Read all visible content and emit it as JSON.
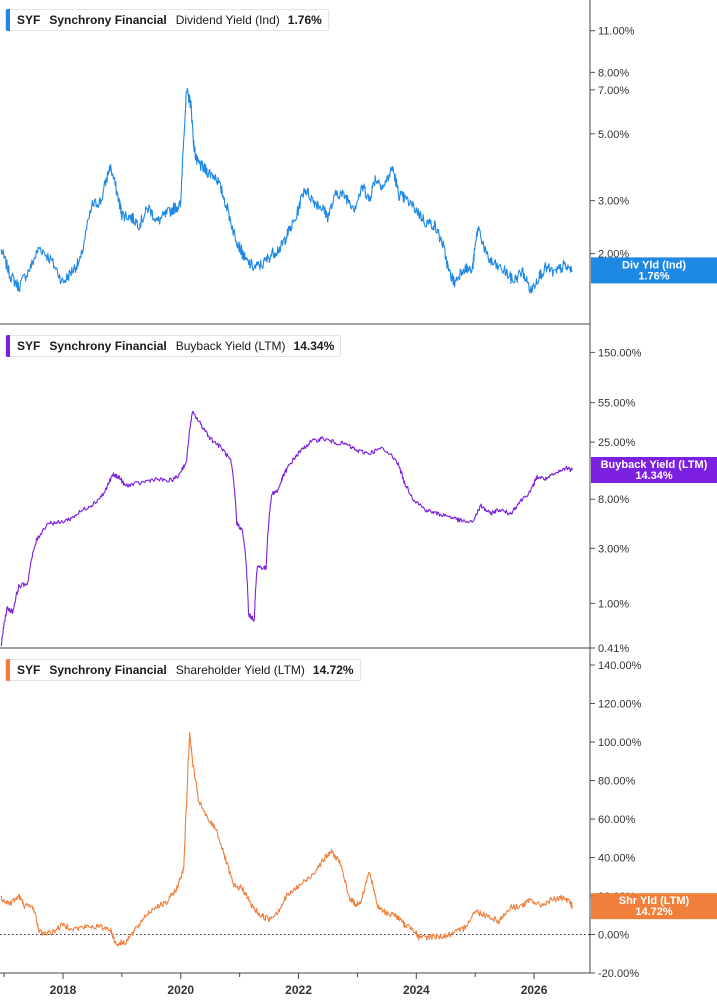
{
  "chart_data": [
    {
      "type": "line",
      "ticker": "SYF",
      "company": "Synchrony Financial",
      "metric": "Dividend Yield (Ind)",
      "current_value": "1.76%",
      "tag_label": "Div Yld (Ind)",
      "tag_value": "1.76%",
      "color": "#1e88e5",
      "scale": "log",
      "ylim": [
        1.3,
        12.5
      ],
      "yticks": [
        {
          "label": "11.00%",
          "value": 11
        },
        {
          "label": "8.00%",
          "value": 8
        },
        {
          "label": "7.00%",
          "value": 7
        },
        {
          "label": "5.00%",
          "value": 5
        },
        {
          "label": "3.00%",
          "value": 3
        },
        {
          "label": "2.00%",
          "value": 2
        }
      ],
      "x": [
        2016.95,
        2017.1,
        2017.25,
        2017.45,
        2017.6,
        2017.8,
        2018.0,
        2018.15,
        2018.3,
        2018.5,
        2018.65,
        2018.8,
        2018.95,
        2019.0,
        2019.15,
        2019.3,
        2019.45,
        2019.6,
        2019.75,
        2019.9,
        2020.0,
        2020.1,
        2020.17,
        2020.22,
        2020.27,
        2020.35,
        2020.45,
        2020.6,
        2020.75,
        2020.9,
        2021.0,
        2021.1,
        2021.25,
        2021.4,
        2021.55,
        2021.7,
        2021.8,
        2021.95,
        2022.1,
        2022.25,
        2022.4,
        2022.5,
        2022.65,
        2022.8,
        2022.95,
        2023.1,
        2023.2,
        2023.3,
        2023.45,
        2023.6,
        2023.7,
        2023.8,
        2024.0,
        2024.15,
        2024.3,
        2024.45,
        2024.55,
        2024.65,
        2024.8,
        2024.95,
        2025.05,
        2025.2,
        2025.3,
        2025.5,
        2025.65,
        2025.8,
        2025.95,
        2026.05,
        2026.2,
        2026.35,
        2026.5,
        2026.65
      ],
      "values": [
        2.05,
        1.7,
        1.55,
        1.8,
        2.1,
        1.9,
        1.6,
        1.75,
        1.9,
        2.9,
        3.0,
        3.9,
        3.0,
        2.7,
        2.65,
        2.5,
        2.85,
        2.55,
        2.7,
        2.85,
        2.9,
        6.9,
        6.3,
        4.6,
        4.05,
        3.9,
        3.75,
        3.6,
        3.0,
        2.35,
        2.1,
        1.9,
        1.8,
        1.85,
        2.0,
        2.1,
        2.3,
        2.6,
        3.3,
        3.0,
        2.85,
        2.65,
        3.2,
        3.1,
        2.85,
        3.35,
        3.0,
        3.55,
        3.35,
        3.85,
        3.15,
        3.05,
        2.8,
        2.55,
        2.5,
        2.15,
        1.75,
        1.6,
        1.8,
        1.75,
        2.45,
        1.95,
        1.85,
        1.75,
        1.62,
        1.75,
        1.5,
        1.65,
        1.8,
        1.72,
        1.82,
        1.76
      ]
    },
    {
      "type": "line",
      "ticker": "SYF",
      "company": "Synchrony Financial",
      "metric": "Buyback Yield (LTM)",
      "current_value": "14.34%",
      "tag_label": "Buyback Yield (LTM)",
      "tag_value": "14.34%",
      "color": "#7b1fe0",
      "scale": "log",
      "ylim": [
        0.41,
        200
      ],
      "yticks": [
        {
          "label": "150.00%",
          "value": 150
        },
        {
          "label": "55.00%",
          "value": 55
        },
        {
          "label": "25.00%",
          "value": 25
        },
        {
          "label": "8.00%",
          "value": 8
        },
        {
          "label": "3.00%",
          "value": 3
        },
        {
          "label": "1.00%",
          "value": 1
        },
        {
          "label": "0.41%",
          "value": 0.41
        }
      ],
      "x": [
        2016.95,
        2017.05,
        2017.15,
        2017.25,
        2017.4,
        2017.55,
        2017.75,
        2017.95,
        2018.15,
        2018.35,
        2018.55,
        2018.7,
        2018.85,
        2018.95,
        2019.05,
        2019.3,
        2019.55,
        2019.8,
        2019.95,
        2020.1,
        2020.2,
        2020.35,
        2020.5,
        2020.7,
        2020.85,
        2020.95,
        2021.05,
        2021.15,
        2021.25,
        2021.3,
        2021.45,
        2021.55,
        2021.65,
        2021.75,
        2021.85,
        2022.0,
        2022.2,
        2022.4,
        2022.6,
        2022.8,
        2023.0,
        2023.2,
        2023.4,
        2023.65,
        2023.8,
        2023.95,
        2024.15,
        2024.35,
        2024.55,
        2024.75,
        2024.95,
        2025.1,
        2025.25,
        2025.4,
        2025.6,
        2025.75,
        2025.95,
        2026.05,
        2026.2,
        2026.4,
        2026.55,
        2026.65
      ],
      "values": [
        0.42,
        0.9,
        0.85,
        1.4,
        1.5,
        3.5,
        5.0,
        5.0,
        5.5,
        6.5,
        7.5,
        9.0,
        13.0,
        12.5,
        10.5,
        11.0,
        12.0,
        11.5,
        12.5,
        17.0,
        45.0,
        35.0,
        27.0,
        22.0,
        17.0,
        5.0,
        4.2,
        0.8,
        0.72,
        2.1,
        2.0,
        9.0,
        9.5,
        13.0,
        16.0,
        20.0,
        25.0,
        27.0,
        25.0,
        24.0,
        21.0,
        20.0,
        22.0,
        18.0,
        11.0,
        8.0,
        6.5,
        6.0,
        5.7,
        5.2,
        5.0,
        7.0,
        6.0,
        6.5,
        6.0,
        7.5,
        9.5,
        12.5,
        12.0,
        13.5,
        15.0,
        14.34
      ]
    },
    {
      "type": "line",
      "ticker": "SYF",
      "company": "Synchrony Financial",
      "metric": "Shareholder Yield (LTM)",
      "current_value": "14.72%",
      "tag_label": "Shr Yld (LTM)",
      "tag_value": "14.72%",
      "color": "#f07f3c",
      "scale": "linear",
      "ylim": [
        -20,
        140
      ],
      "yticks": [
        {
          "label": "140.00%",
          "value": 140
        },
        {
          "label": "120.00%",
          "value": 120
        },
        {
          "label": "100.00%",
          "value": 100
        },
        {
          "label": "80.00%",
          "value": 80
        },
        {
          "label": "60.00%",
          "value": 60
        },
        {
          "label": "40.00%",
          "value": 40
        },
        {
          "label": "20.00%",
          "value": 20
        },
        {
          "label": "0.00%",
          "value": 0
        },
        {
          "label": "-20.00%",
          "value": -20
        }
      ],
      "x": [
        2016.95,
        2017.1,
        2017.25,
        2017.35,
        2017.5,
        2017.6,
        2017.8,
        2018.0,
        2018.2,
        2018.4,
        2018.6,
        2018.8,
        2018.9,
        2019.05,
        2019.2,
        2019.4,
        2019.6,
        2019.75,
        2019.95,
        2020.05,
        2020.15,
        2020.2,
        2020.3,
        2020.45,
        2020.6,
        2020.75,
        2020.9,
        2021.05,
        2021.2,
        2021.35,
        2021.5,
        2021.65,
        2021.8,
        2022.0,
        2022.2,
        2022.4,
        2022.55,
        2022.7,
        2022.85,
        2022.95,
        2023.05,
        2023.2,
        2023.35,
        2023.5,
        2023.65,
        2023.8,
        2023.95,
        2024.05,
        2024.25,
        2024.45,
        2024.6,
        2024.8,
        2025.0,
        2025.2,
        2025.4,
        2025.6,
        2025.8,
        2025.95,
        2026.1,
        2026.3,
        2026.45,
        2026.6,
        2026.65
      ],
      "values": [
        19,
        16,
        20,
        15,
        14,
        1,
        1,
        5,
        3,
        4,
        4,
        3,
        -5,
        -4,
        1,
        10,
        15,
        16,
        25,
        35,
        105,
        90,
        70,
        60,
        55,
        40,
        25,
        24,
        15,
        10,
        8,
        12,
        20,
        25,
        30,
        38,
        43,
        38,
        20,
        16,
        16,
        33,
        14,
        11,
        10,
        5,
        3,
        -2,
        -1,
        -1,
        0,
        3,
        12,
        10,
        7,
        14,
        15,
        18,
        15,
        18,
        19,
        17,
        14.72
      ]
    }
  ],
  "x_axis": {
    "ticks": [
      {
        "label": "2018",
        "value": 2018
      },
      {
        "label": "2020",
        "value": 2020
      },
      {
        "label": "2022",
        "value": 2022
      },
      {
        "label": "2024",
        "value": 2024
      },
      {
        "label": "2026",
        "value": 2026
      }
    ],
    "xlim": [
      2016.93,
      2026.95
    ]
  }
}
